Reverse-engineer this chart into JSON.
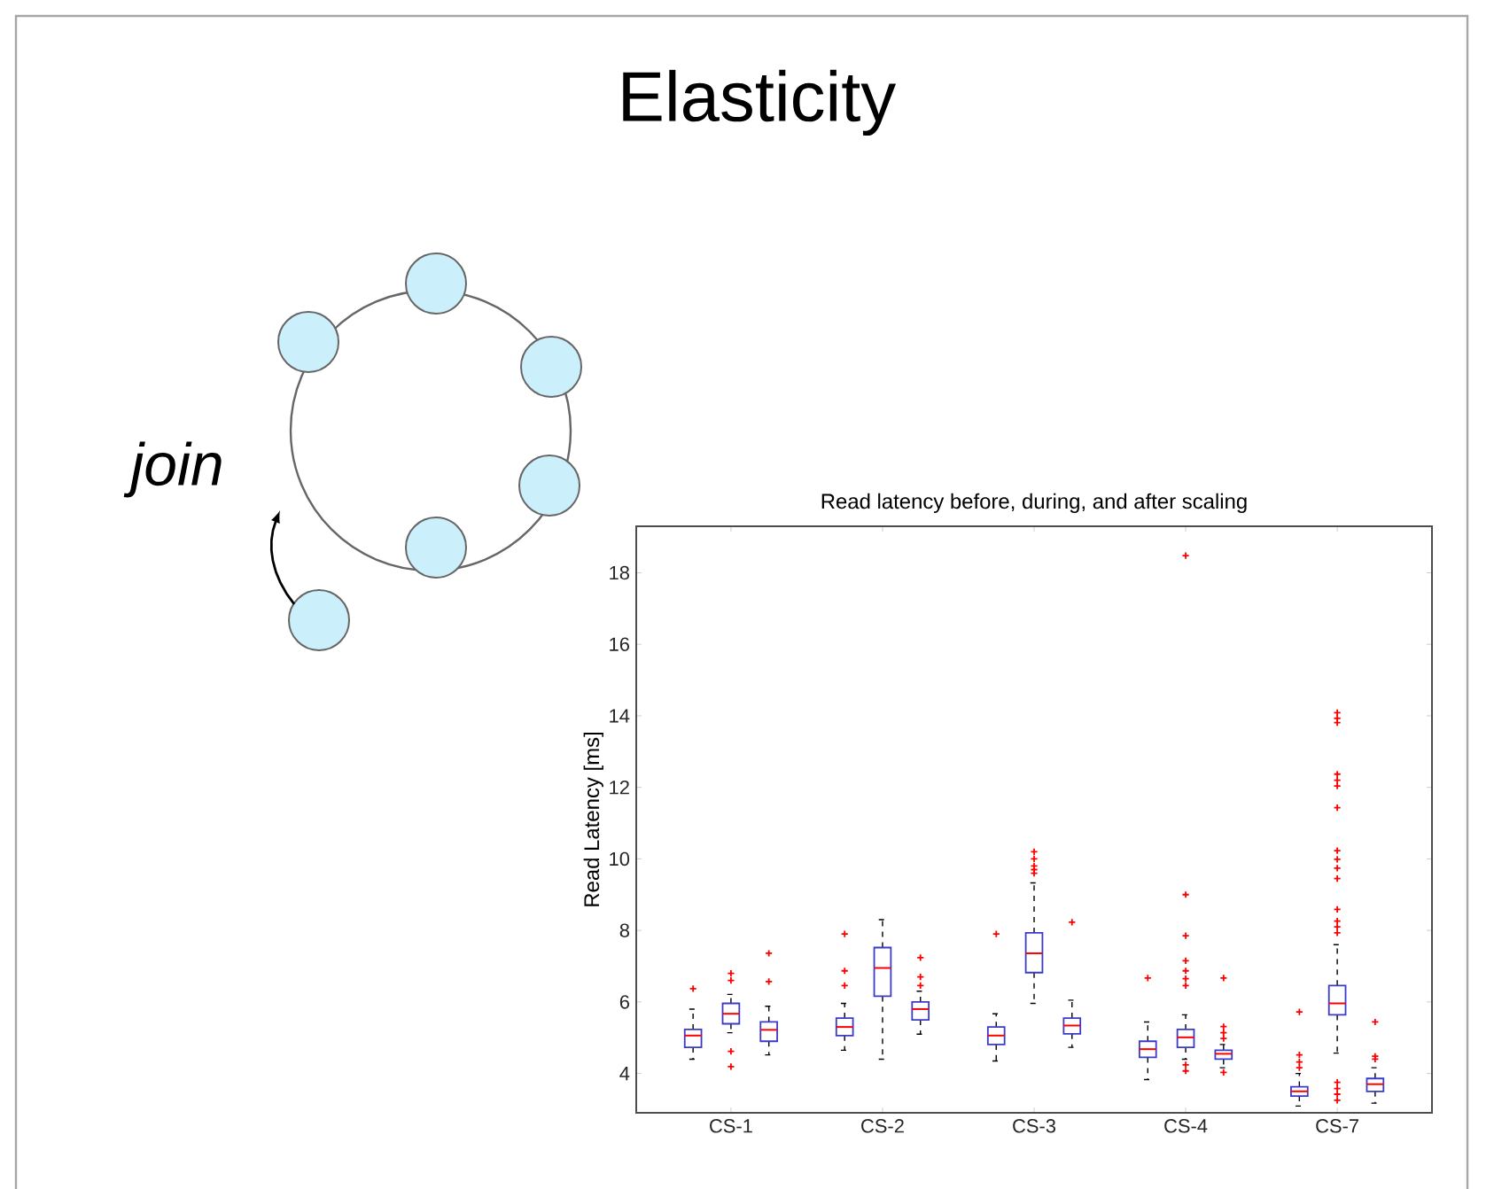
{
  "chart_data": {
    "type": "box",
    "title": "Elasticity",
    "subtitle": "Read latency before, during, and after scaling",
    "ylabel": "Read Latency [ms]",
    "annotations": [
      "join"
    ],
    "categories": [
      "CS-1",
      "CS-2",
      "CS-3",
      "CS-4",
      "CS-7"
    ],
    "ylim": [
      2.9,
      19.3
    ],
    "yticks": [
      4,
      6,
      8,
      10,
      12,
      14,
      16,
      18
    ],
    "grid": false,
    "series": [
      {
        "color": "#3b3bc8",
        "boxes": [
          {
            "low": 4.4,
            "q1": 4.73,
            "median": 5.06,
            "q3": 5.23,
            "high": 5.8,
            "outliers": [
              6.37
            ]
          },
          {
            "low": 4.65,
            "q1": 5.06,
            "median": 5.3,
            "q3": 5.55,
            "high": 5.96,
            "outliers": [
              7.9,
              6.87,
              6.46
            ]
          },
          {
            "low": 4.35,
            "q1": 4.81,
            "median": 5.06,
            "q3": 5.3,
            "high": 5.67,
            "outliers": [
              7.9
            ]
          },
          {
            "low": 3.83,
            "q1": 4.45,
            "median": 4.68,
            "q3": 4.9,
            "high": 5.44,
            "outliers": [
              6.67
            ]
          },
          {
            "low": 3.09,
            "q1": 3.37,
            "median": 3.5,
            "q3": 3.63,
            "high": 4.0,
            "outliers": [
              5.72,
              4.52,
              4.32,
              4.16
            ]
          }
        ]
      },
      {
        "color": "#3b3bc8",
        "boxes": [
          {
            "low": 5.14,
            "q1": 5.39,
            "median": 5.67,
            "q3": 5.96,
            "high": 6.21,
            "outliers": [
              6.8,
              6.6,
              4.62,
              4.19
            ]
          },
          {
            "low": 4.4,
            "q1": 6.16,
            "median": 6.95,
            "q3": 7.52,
            "high": 8.3
          },
          {
            "low": 5.96,
            "q1": 6.82,
            "median": 7.36,
            "q3": 7.93,
            "high": 9.33,
            "outliers": [
              10.2,
              10.0,
              9.8,
              9.7,
              9.6
            ]
          },
          {
            "low": 4.4,
            "q1": 4.73,
            "median": 5.01,
            "q3": 5.23,
            "high": 5.64,
            "outliers": [
              18.48,
              9.0,
              7.85,
              7.15,
              6.87,
              6.65,
              6.46,
              4.24,
              4.07
            ]
          },
          {
            "low": 4.57,
            "q1": 5.64,
            "median": 5.96,
            "q3": 6.46,
            "high": 7.6,
            "outliers": [
              14.09,
              13.93,
              13.81,
              12.37,
              12.2,
              12.04,
              11.43,
              10.23,
              9.99,
              9.74,
              9.45,
              8.59,
              8.26,
              8.1,
              7.93,
              3.75,
              3.58,
              3.42,
              3.25
            ]
          }
        ]
      },
      {
        "color": "#3b3bc8",
        "boxes": [
          {
            "low": 4.52,
            "q1": 4.9,
            "median": 5.22,
            "q3": 5.44,
            "high": 5.88,
            "outliers": [
              7.36,
              6.57
            ]
          },
          {
            "low": 5.1,
            "q1": 5.5,
            "median": 5.8,
            "q3": 6.0,
            "high": 6.3,
            "outliers": [
              7.24,
              6.7,
              6.46
            ]
          },
          {
            "low": 4.73,
            "q1": 5.11,
            "median": 5.34,
            "q3": 5.55,
            "high": 6.05,
            "outliers": [
              8.23
            ]
          },
          {
            "low": 4.16,
            "q1": 4.4,
            "median": 4.55,
            "q3": 4.65,
            "high": 4.81,
            "outliers": [
              6.67,
              5.31,
              5.14,
              4.98,
              4.03
            ]
          },
          {
            "low": 3.17,
            "q1": 3.5,
            "median": 3.7,
            "q3": 3.86,
            "high": 4.16,
            "outliers": [
              5.44,
              4.48,
              4.4
            ]
          }
        ]
      }
    ]
  }
}
